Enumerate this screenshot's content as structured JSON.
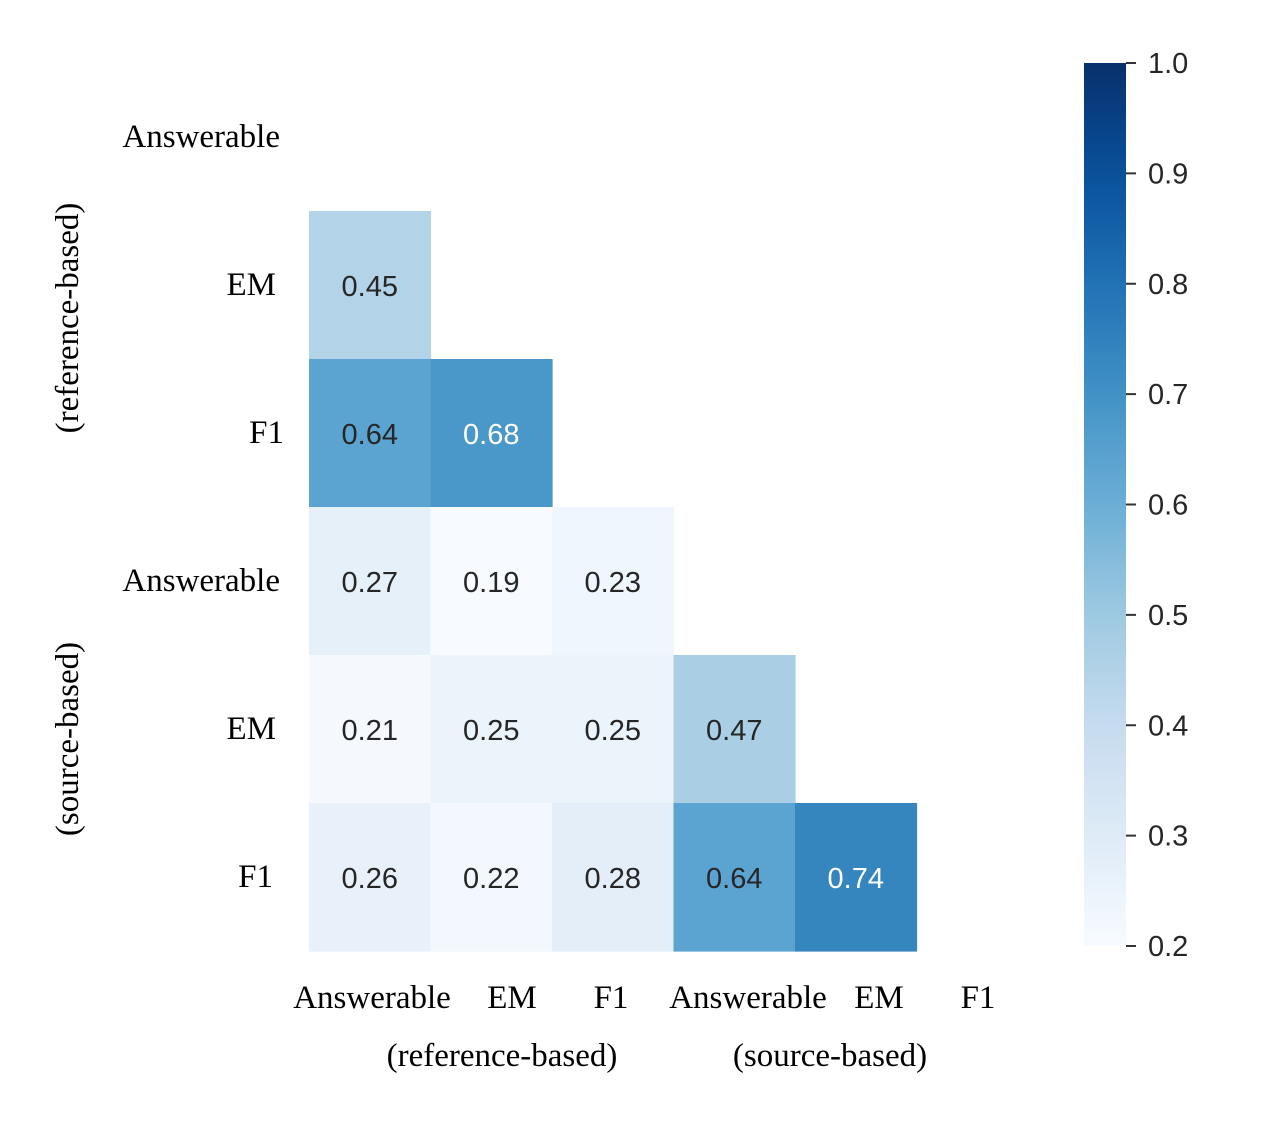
{
  "chart_data": {
    "type": "heatmap",
    "title": "",
    "mask": "upper-triangle-and-diagonal",
    "rows": [
      "Answerable",
      "EM",
      "F1",
      "Answerable",
      "EM",
      "F1"
    ],
    "columns": [
      "Answerable",
      "EM",
      "F1",
      "Answerable",
      "EM",
      "F1"
    ],
    "row_groups": [
      "(reference-based)",
      "(source-based)"
    ],
    "column_groups": [
      "(reference-based)",
      "(source-based)"
    ],
    "values": [
      [
        null,
        null,
        null,
        null,
        null,
        null
      ],
      [
        0.45,
        null,
        null,
        null,
        null,
        null
      ],
      [
        0.64,
        0.68,
        null,
        null,
        null,
        null
      ],
      [
        0.27,
        0.19,
        0.23,
        null,
        null,
        null
      ],
      [
        0.21,
        0.25,
        0.25,
        0.47,
        null,
        null
      ],
      [
        0.26,
        0.22,
        0.28,
        0.64,
        0.74,
        null
      ]
    ],
    "colorbar": {
      "range": [
        0.2,
        1.0
      ],
      "ticks": [
        "0.2",
        "0.3",
        "0.4",
        "0.5",
        "0.6",
        "0.7",
        "0.8",
        "0.9",
        "1.0"
      ],
      "colormap": "Blues",
      "low_color": "#f7fbff",
      "high_color": "#08306b"
    }
  }
}
